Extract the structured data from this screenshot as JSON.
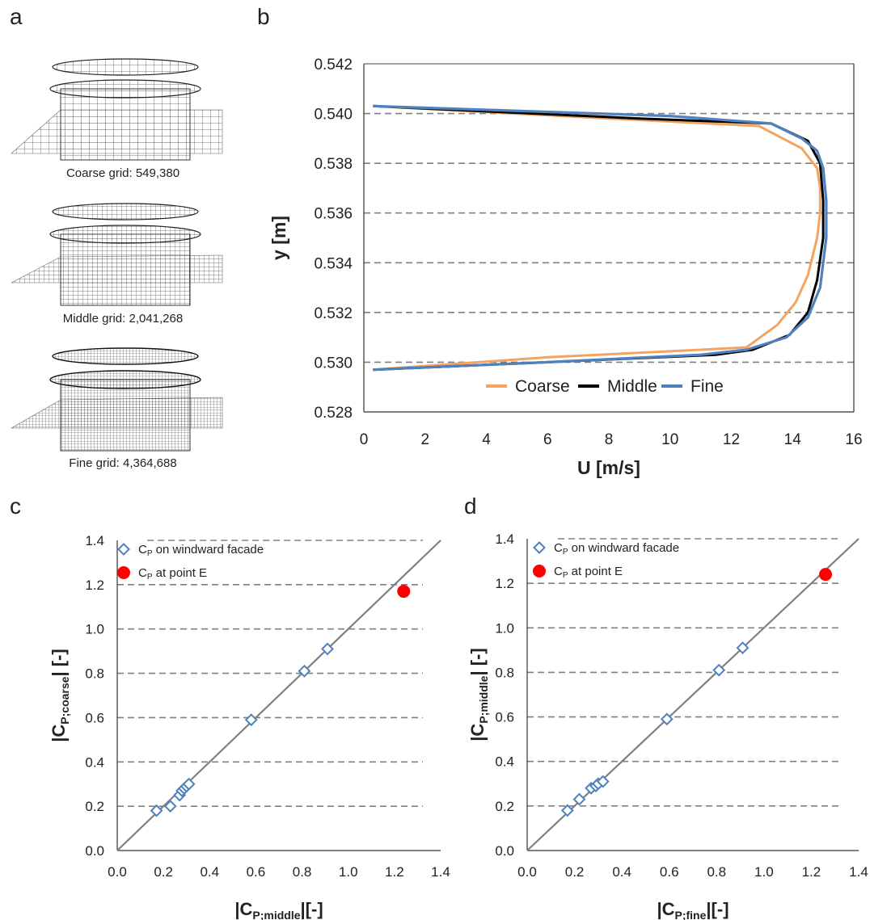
{
  "panels": {
    "a": {
      "letter": "a",
      "captions": [
        "Coarse grid: 549,380",
        "Middle grid: 2,041,268",
        "Fine grid: 4,364,688"
      ]
    },
    "b": {
      "letter": "b"
    },
    "c": {
      "letter": "c"
    },
    "d": {
      "letter": "d"
    }
  },
  "colors": {
    "coarse": "#f4a460",
    "middle": "#000000",
    "fine": "#4f81bd",
    "diamond": "#4f81bd",
    "point_e": "#ff0000",
    "gridline": "#808080",
    "diagonal": "#808080"
  },
  "chart_data": [
    {
      "id": "b",
      "type": "line",
      "xlabel": "U [m/s]",
      "ylabel": "y [m]",
      "xlim": [
        0,
        16
      ],
      "ylim": [
        0.528,
        0.542
      ],
      "xticks": [
        "0",
        "2",
        "4",
        "6",
        "8",
        "10",
        "12",
        "14",
        "16"
      ],
      "yticks": [
        "0.528",
        "0.530",
        "0.532",
        "0.534",
        "0.536",
        "0.538",
        "0.540",
        "0.542"
      ],
      "grid": "horizontal dashed",
      "legend_position": "bottom",
      "series": [
        {
          "name": "Coarse",
          "points": [
            [
              0.3,
              0.5297
            ],
            [
              6.0,
              0.5302
            ],
            [
              11.0,
              0.5305
            ],
            [
              12.5,
              0.5306
            ],
            [
              13.5,
              0.5315
            ],
            [
              14.1,
              0.5324
            ],
            [
              14.5,
              0.5335
            ],
            [
              14.8,
              0.535
            ],
            [
              14.9,
              0.536
            ],
            [
              14.9,
              0.537
            ],
            [
              14.8,
              0.5378
            ],
            [
              14.3,
              0.5386
            ],
            [
              12.9,
              0.5395
            ],
            [
              8.0,
              0.5398
            ],
            [
              0.3,
              0.5403
            ]
          ]
        },
        {
          "name": "Middle",
          "points": [
            [
              0.3,
              0.5297
            ],
            [
              6.0,
              0.53
            ],
            [
              11.5,
              0.5303
            ],
            [
              12.7,
              0.5305
            ],
            [
              13.9,
              0.5311
            ],
            [
              14.5,
              0.532
            ],
            [
              14.8,
              0.5333
            ],
            [
              15.0,
              0.535
            ],
            [
              15.0,
              0.5365
            ],
            [
              14.9,
              0.538
            ],
            [
              14.5,
              0.5389
            ],
            [
              13.3,
              0.5396
            ],
            [
              9.0,
              0.5398
            ],
            [
              0.3,
              0.5403
            ]
          ]
        },
        {
          "name": "Fine",
          "points": [
            [
              0.3,
              0.5297
            ],
            [
              6.0,
              0.53
            ],
            [
              11.0,
              0.5303
            ],
            [
              12.5,
              0.5305
            ],
            [
              13.8,
              0.531
            ],
            [
              14.5,
              0.5318
            ],
            [
              14.9,
              0.533
            ],
            [
              15.1,
              0.535
            ],
            [
              15.1,
              0.5365
            ],
            [
              15.0,
              0.5378
            ],
            [
              14.8,
              0.5385
            ],
            [
              14.3,
              0.539
            ],
            [
              13.3,
              0.5396
            ],
            [
              10.0,
              0.5399
            ],
            [
              0.3,
              0.5403
            ]
          ]
        }
      ]
    },
    {
      "id": "c",
      "type": "scatter",
      "xlabel": "|CP;middle|[-]",
      "ylabel": "|CP;coarse| [-]",
      "xlim": [
        0,
        1.4
      ],
      "ylim": [
        0,
        1.4
      ],
      "xticks": [
        "0.0",
        "0.2",
        "0.4",
        "0.6",
        "0.8",
        "1.0",
        "1.2",
        "1.4"
      ],
      "yticks": [
        "0.0",
        "0.2",
        "0.4",
        "0.6",
        "0.8",
        "1.0",
        "1.2",
        "1.4"
      ],
      "grid": "horizontal dashed",
      "legend_position": "top-left",
      "series": [
        {
          "name": "CP on windward facade",
          "marker": "diamond",
          "points": [
            [
              0.17,
              0.18
            ],
            [
              0.23,
              0.2
            ],
            [
              0.27,
              0.25
            ],
            [
              0.28,
              0.27
            ],
            [
              0.29,
              0.28
            ],
            [
              0.3,
              0.29
            ],
            [
              0.31,
              0.3
            ],
            [
              0.58,
              0.59
            ],
            [
              0.81,
              0.81
            ],
            [
              0.91,
              0.91
            ]
          ]
        },
        {
          "name": "CP at point E",
          "marker": "circle",
          "points": [
            [
              1.24,
              1.17
            ]
          ]
        }
      ],
      "diagonal": true
    },
    {
      "id": "d",
      "type": "scatter",
      "xlabel": "|CP;fine|[-]",
      "ylabel": "|CP;middle| [-]",
      "xlim": [
        0,
        1.4
      ],
      "ylim": [
        0,
        1.4
      ],
      "xticks": [
        "0.0",
        "0.2",
        "0.4",
        "0.6",
        "0.8",
        "1.0",
        "1.2",
        "1.4"
      ],
      "yticks": [
        "0.0",
        "0.2",
        "0.4",
        "0.6",
        "0.8",
        "1.0",
        "1.2",
        "1.4"
      ],
      "grid": "horizontal dashed",
      "legend_position": "top-left",
      "series": [
        {
          "name": "CP on windward facade",
          "marker": "diamond",
          "points": [
            [
              0.17,
              0.18
            ],
            [
              0.22,
              0.23
            ],
            [
              0.27,
              0.28
            ],
            [
              0.29,
              0.29
            ],
            [
              0.3,
              0.3
            ],
            [
              0.32,
              0.31
            ],
            [
              0.59,
              0.59
            ],
            [
              0.81,
              0.81
            ],
            [
              0.91,
              0.91
            ]
          ]
        },
        {
          "name": "CP at point E",
          "marker": "circle",
          "points": [
            [
              1.26,
              1.24
            ]
          ]
        }
      ],
      "diagonal": true
    }
  ]
}
